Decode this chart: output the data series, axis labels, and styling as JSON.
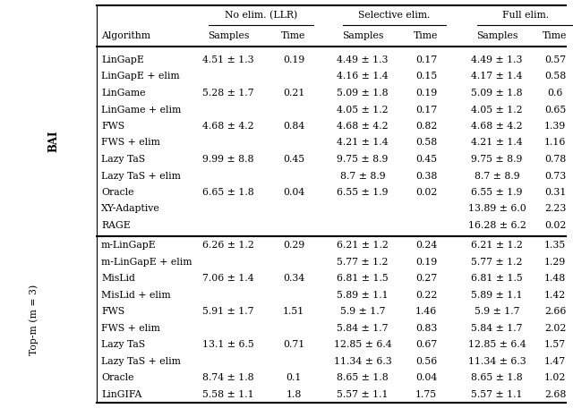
{
  "bai_rows": [
    [
      "LinGapE",
      "4.51 ± 1.3",
      "0.19",
      "4.49 ± 1.3",
      "0.17",
      "4.49 ± 1.3",
      "0.57"
    ],
    [
      "LinGapE + elim",
      "",
      "",
      "4.16 ± 1.4",
      "0.15",
      "4.17 ± 1.4",
      "0.58"
    ],
    [
      "LinGame",
      "5.28 ± 1.7",
      "0.21",
      "5.09 ± 1.8",
      "0.19",
      "5.09 ± 1.8",
      "0.6"
    ],
    [
      "LinGame + elim",
      "",
      "",
      "4.05 ± 1.2",
      "0.17",
      "4.05 ± 1.2",
      "0.65"
    ],
    [
      "FWS",
      "4.68 ± 4.2",
      "0.84",
      "4.68 ± 4.2",
      "0.82",
      "4.68 ± 4.2",
      "1.39"
    ],
    [
      "FWS + elim",
      "",
      "",
      "4.21 ± 1.4",
      "0.58",
      "4.21 ± 1.4",
      "1.16"
    ],
    [
      "Lazy TaS",
      "9.99 ± 8.8",
      "0.45",
      "9.75 ± 8.9",
      "0.45",
      "9.75 ± 8.9",
      "0.78"
    ],
    [
      "Lazy TaS + elim",
      "",
      "",
      "8.7 ± 8.9",
      "0.38",
      "8.7 ± 8.9",
      "0.73"
    ],
    [
      "Oracle",
      "6.65 ± 1.8",
      "0.04",
      "6.55 ± 1.9",
      "0.02",
      "6.55 ± 1.9",
      "0.31"
    ],
    [
      "XY-Adaptive",
      "",
      "",
      "",
      "",
      "13.89 ± 6.0",
      "2.23"
    ],
    [
      "RAGE",
      "",
      "",
      "",
      "",
      "16.28 ± 6.2",
      "0.02"
    ]
  ],
  "topm_rows": [
    [
      "m-LinGapE",
      "6.26 ± 1.2",
      "0.29",
      "6.21 ± 1.2",
      "0.24",
      "6.21 ± 1.2",
      "1.35"
    ],
    [
      "m-LinGapE + elim",
      "",
      "",
      "5.77 ± 1.2",
      "0.19",
      "5.77 ± 1.2",
      "1.29"
    ],
    [
      "MisLid",
      "7.06 ± 1.4",
      "0.34",
      "6.81 ± 1.5",
      "0.27",
      "6.81 ± 1.5",
      "1.48"
    ],
    [
      "MisLid + elim",
      "",
      "",
      "5.89 ± 1.1",
      "0.22",
      "5.89 ± 1.1",
      "1.42"
    ],
    [
      "FWS",
      "5.91 ± 1.7",
      "1.51",
      "5.9 ± 1.7",
      "1.46",
      "5.9 ± 1.7",
      "2.66"
    ],
    [
      "FWS + elim",
      "",
      "",
      "5.84 ± 1.7",
      "0.83",
      "5.84 ± 1.7",
      "2.02"
    ],
    [
      "Lazy TaS",
      "13.1 ± 6.5",
      "0.71",
      "12.85 ± 6.4",
      "0.67",
      "12.85 ± 6.4",
      "1.57"
    ],
    [
      "Lazy TaS + elim",
      "",
      "",
      "11.34 ± 6.3",
      "0.56",
      "11.34 ± 6.3",
      "1.47"
    ],
    [
      "Oracle",
      "8.74 ± 1.8",
      "0.1",
      "8.65 ± 1.8",
      "0.04",
      "8.65 ± 1.8",
      "1.02"
    ],
    [
      "LinGIFA",
      "5.58 ± 1.1",
      "1.8",
      "5.57 ± 1.1",
      "1.75",
      "5.57 ± 1.1",
      "2.68"
    ]
  ],
  "bai_label": "BAI",
  "topm_label": "Top-m (m = 3)",
  "bg_color": "#ffffff",
  "text_color": "#000000",
  "line_color": "#000000",
  "header1_labels": [
    "No elim. (LLR)",
    "Selective elim.",
    "Full elim."
  ],
  "header2_labels": [
    "Algorithm",
    "Samples",
    "Time",
    "Samples",
    "Time",
    "Samples",
    "Time"
  ],
  "fontsize": 7.8,
  "label_fontsize": 8.5
}
